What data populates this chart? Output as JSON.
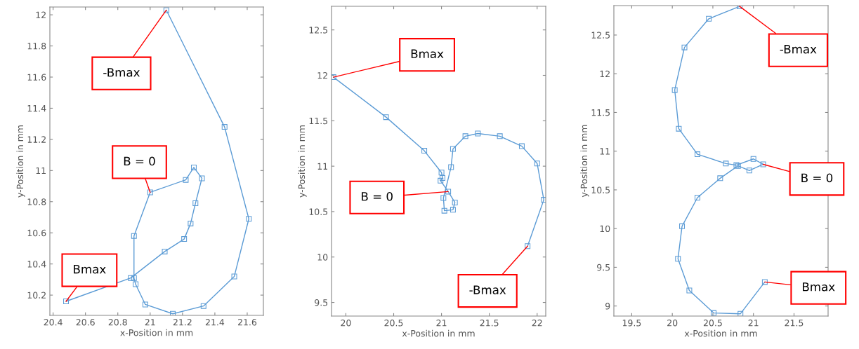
{
  "chart_data": [
    {
      "type": "line",
      "xlabel": "x-Position in mm",
      "ylabel": "y-Position in mm",
      "xlim": [
        20.38,
        21.7
      ],
      "ylim": [
        10.07,
        12.05
      ],
      "xticks": [
        {
          "value": 20.4,
          "label": "20.4"
        },
        {
          "value": 20.6,
          "label": "20.6"
        },
        {
          "value": 20.8,
          "label": "20.8"
        },
        21,
        {
          "value": 21.2,
          "label": "21.2"
        },
        {
          "value": 21.4,
          "label": "21.4"
        },
        {
          "value": 21.6,
          "label": "21.6"
        }
      ],
      "yticks": [
        {
          "value": 10.2,
          "label": "10.2"
        },
        {
          "value": 10.4,
          "label": "10.4"
        },
        {
          "value": 10.6,
          "label": "10.6"
        },
        {
          "value": 10.8,
          "label": "10.8"
        },
        11,
        {
          "value": 11.2,
          "label": "11.2"
        },
        {
          "value": 11.4,
          "label": "11.4"
        },
        {
          "value": 11.6,
          "label": "11.6"
        },
        {
          "value": 11.8,
          "label": "11.8"
        },
        12
      ],
      "grid": false,
      "marker": "square",
      "line_style": "solid",
      "series": [
        {
          "color": "#5b9bd5",
          "x": [
            20.48,
            20.88,
            21.09,
            21.21,
            21.25,
            21.28,
            21.32,
            21.27,
            21.22,
            21.0,
            20.9,
            20.9,
            20.91,
            20.97,
            21.14,
            21.33,
            21.52,
            21.61,
            21.46,
            21.1
          ],
          "values": [
            10.16,
            10.31,
            10.48,
            10.56,
            10.66,
            10.79,
            10.95,
            11.02,
            10.94,
            10.86,
            10.58,
            10.31,
            10.27,
            10.14,
            10.08,
            10.13,
            10.32,
            10.69,
            11.28,
            12.03
          ]
        }
      ],
      "annotations": [
        {
          "text": "-Bmax",
          "x": 21.1,
          "y": 12.03
        },
        {
          "text": "B = 0",
          "x": 21.0,
          "y": 10.86
        },
        {
          "text": "Bmax",
          "x": 20.48,
          "y": 10.16
        }
      ]
    },
    {
      "type": "line",
      "xlabel": "x-Position in mm",
      "ylabel": "y-Position in mm",
      "xlim": [
        19.85,
        22.09
      ],
      "ylim": [
        9.35,
        12.76
      ],
      "xticks": [
        20,
        {
          "value": 20.5,
          "label": "20.5"
        },
        21,
        {
          "value": 21.5,
          "label": "21.5"
        },
        22
      ],
      "yticks": [
        {
          "value": 9.5,
          "label": "9.5"
        },
        10,
        {
          "value": 10.5,
          "label": "10.5"
        },
        11,
        {
          "value": 11.5,
          "label": "11.5"
        },
        12,
        {
          "value": 12.5,
          "label": "12.5"
        }
      ],
      "grid": false,
      "marker": "square",
      "line_style": "solid",
      "series": [
        {
          "color": "#5b9bd5",
          "x": [
            19.87,
            20.42,
            20.82,
            21.0,
            21.01,
            20.99,
            21.07,
            21.14,
            21.12,
            21.03,
            21.02,
            21.1,
            21.12,
            21.25,
            21.38,
            21.61,
            21.84,
            22.0,
            22.07,
            21.9
          ],
          "values": [
            11.98,
            11.54,
            11.17,
            10.93,
            10.87,
            10.84,
            10.72,
            10.6,
            10.52,
            10.51,
            10.65,
            10.99,
            11.19,
            11.33,
            11.36,
            11.33,
            11.22,
            11.03,
            10.63,
            10.12
          ]
        }
      ],
      "annotations": [
        {
          "text": "Bmax",
          "x": 19.87,
          "y": 11.98
        },
        {
          "text": "B = 0",
          "x": 21.07,
          "y": 10.72
        },
        {
          "text": "-Bmax",
          "x": 21.9,
          "y": 10.12
        }
      ]
    },
    {
      "type": "line",
      "xlabel": "x-Position in mm",
      "ylabel": "y-Position in mm",
      "xlim": [
        19.28,
        21.92
      ],
      "ylim": [
        8.87,
        12.88
      ],
      "xticks": [
        {
          "value": 19.5,
          "label": "19.5"
        },
        20,
        {
          "value": 20.5,
          "label": "20.5"
        },
        21,
        {
          "value": 21.5,
          "label": "21.5"
        }
      ],
      "yticks": [
        9,
        {
          "value": 9.5,
          "label": "9.5"
        },
        10,
        {
          "value": 10.5,
          "label": "10.5"
        },
        11,
        {
          "value": 11.5,
          "label": "11.5"
        },
        12,
        {
          "value": 12.5,
          "label": "12.5"
        }
      ],
      "grid": false,
      "marker": "square",
      "line_style": "solid",
      "series": [
        {
          "color": "#5b9bd5",
          "x": [
            21.14,
            20.84,
            20.51,
            20.21,
            20.07,
            20.12,
            20.31,
            20.59,
            20.81,
            20.95,
            21.12,
            21.0,
            20.79,
            20.66,
            20.31,
            20.08,
            20.03,
            20.15,
            20.45,
            20.83
          ],
          "values": [
            9.31,
            8.9,
            8.91,
            9.2,
            9.61,
            10.03,
            10.4,
            10.65,
            10.81,
            10.75,
            10.83,
            10.9,
            10.82,
            10.84,
            10.96,
            11.29,
            11.79,
            12.34,
            12.71,
            12.87
          ]
        }
      ],
      "annotations": [
        {
          "text": "-Bmax",
          "x": 20.83,
          "y": 12.87
        },
        {
          "text": "B = 0",
          "x": 21.12,
          "y": 10.83
        },
        {
          "text": "Bmax",
          "x": 21.14,
          "y": 9.31
        }
      ]
    }
  ]
}
